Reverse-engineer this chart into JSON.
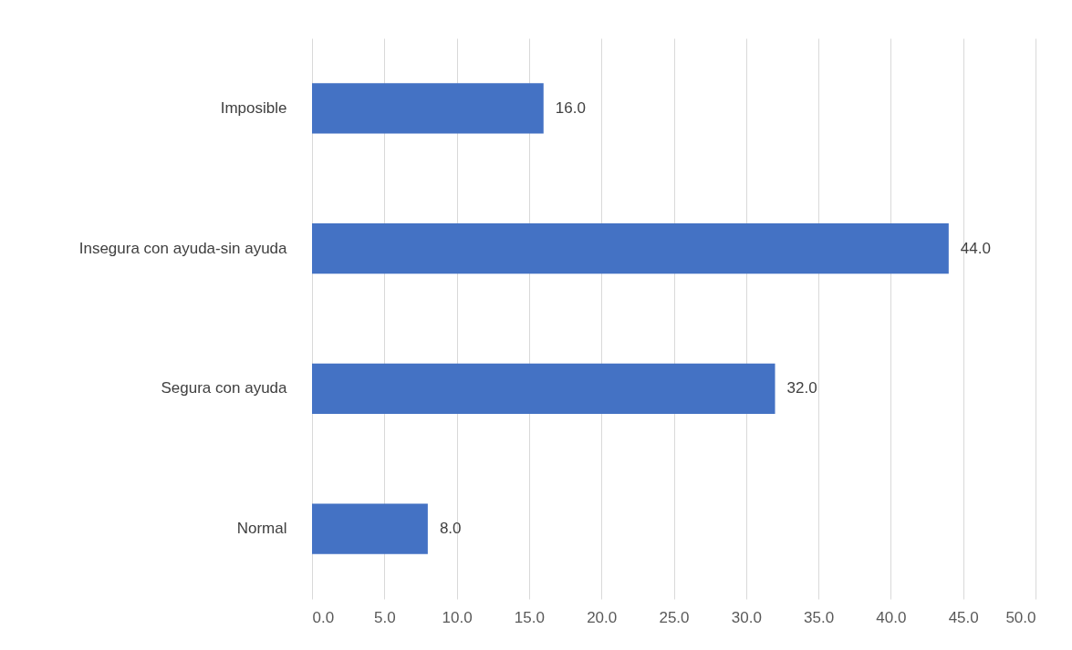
{
  "chart_data": {
    "type": "bar",
    "orientation": "horizontal",
    "categories": [
      "Imposible",
      "Insegura con ayuda-sin ayuda",
      "Segura con ayuda",
      "Normal"
    ],
    "values": [
      16,
      44,
      32,
      8
    ],
    "value_labels": [
      "16.0",
      "44.0",
      "32.0",
      "8.0"
    ],
    "color": "#4472c4",
    "xlim": [
      0,
      50
    ],
    "xticks": [
      {
        "value": 0,
        "label": "0.0"
      },
      {
        "value": 5,
        "label": "5.0"
      },
      {
        "value": 10,
        "label": "10.0"
      },
      {
        "value": 15,
        "label": "15.0"
      },
      {
        "value": 20,
        "label": "20.0"
      },
      {
        "value": 25,
        "label": "25.0"
      },
      {
        "value": 30,
        "label": "30.0"
      },
      {
        "value": 35,
        "label": "35.0"
      },
      {
        "value": 40,
        "label": "40.0"
      },
      {
        "value": 45,
        "label": "45.0"
      },
      {
        "value": 50,
        "label": "50.0"
      }
    ],
    "grid": "x"
  }
}
